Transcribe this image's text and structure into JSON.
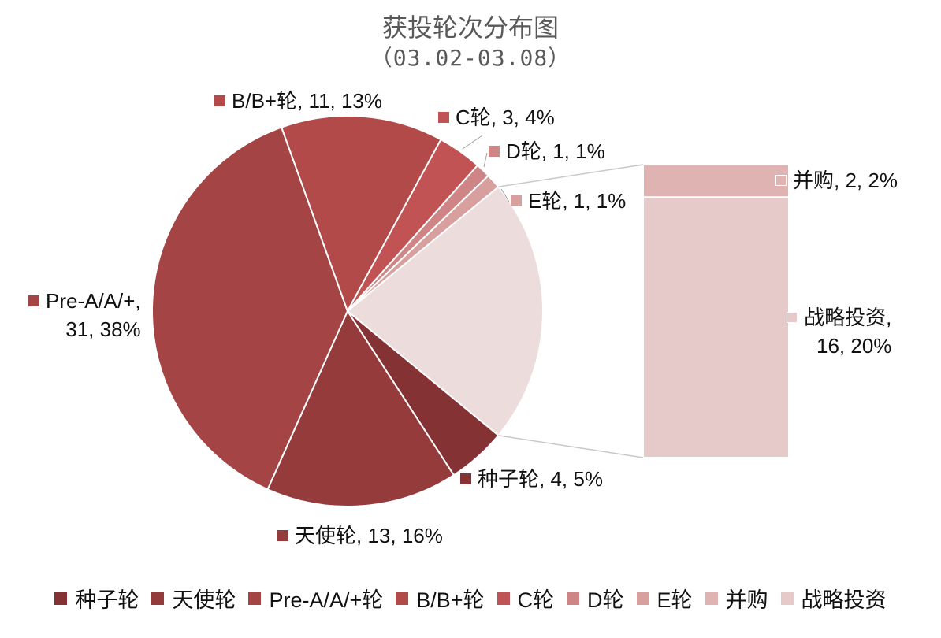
{
  "chart_data": {
    "type": "pie",
    "subtype": "bar-of-pie",
    "title": "获投轮次分布图",
    "subtitle": "（03.02-03.08）",
    "slices": [
      {
        "name": "种子轮",
        "value": 4,
        "percent": "5%",
        "color": "#843234"
      },
      {
        "name": "天使轮",
        "value": 13,
        "percent": "16%",
        "color": "#963B3C"
      },
      {
        "name": "Pre-A/A/+轮",
        "value": 31,
        "percent": "38%",
        "color": "#A44445"
      },
      {
        "name": "B/B+轮",
        "value": 11,
        "percent": "13%",
        "color": "#B34A4A"
      },
      {
        "name": "C轮",
        "value": 3,
        "percent": "4%",
        "color": "#C25354"
      },
      {
        "name": "D轮",
        "value": 1,
        "percent": "1%",
        "color": "#CF8585"
      },
      {
        "name": "E轮",
        "value": 1,
        "percent": "1%",
        "color": "#D89F9F"
      },
      {
        "name": "并购",
        "value": 2,
        "percent": "2%",
        "color": "#E0B3B3"
      },
      {
        "name": "战略投资",
        "value": 16,
        "percent": "20%",
        "color": "#E6C9C9"
      }
    ],
    "pie_other_label_color": "#EDDCDC",
    "legend_position": "bottom"
  },
  "labels": {
    "seed": {
      "name": "种子轮",
      "text": "种子轮, 4, 5%"
    },
    "angel": {
      "name": "天使轮",
      "text": "天使轮, 13, 16%"
    },
    "prea_line1": "Pre-A/A/+,",
    "prea_line2": "31, 38%",
    "b": "B/B+轮, 11, 13%",
    "c": "C轮, 3, 4%",
    "d": "D轮, 1, 1%",
    "e": "E轮, 1, 1%",
    "ma": "并购, 2, 2%",
    "strat_line1": "战略投资,",
    "strat_line2": "16, 20%"
  },
  "legend": [
    "种子轮",
    "天使轮",
    "Pre-A/A/+轮",
    "B/B+轮",
    "C轮",
    "D轮",
    "E轮",
    "并购",
    "战略投资"
  ]
}
